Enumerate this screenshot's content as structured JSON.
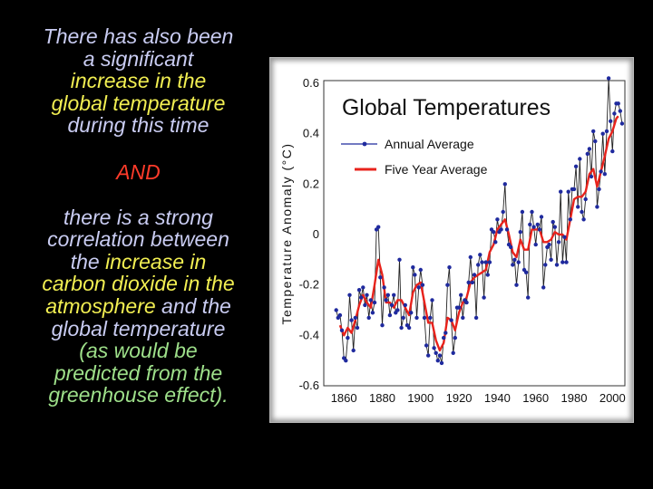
{
  "slide": {
    "intro_lines": [
      {
        "text": "There has also been",
        "cls": "lav"
      },
      {
        "text": "a significant",
        "cls": "lav"
      },
      {
        "text": "increase in the",
        "cls": "yel"
      },
      {
        "text": "global temperature",
        "cls": "yel"
      },
      {
        "text": "during this time",
        "cls": "lav"
      }
    ],
    "and_word": "AND",
    "body_lines": [
      [
        {
          "text": "there is a strong",
          "cls": "lav"
        }
      ],
      [
        {
          "text": "correlation between",
          "cls": "lav"
        }
      ],
      [
        {
          "text": "the ",
          "cls": "lav"
        },
        {
          "text": "increase in",
          "cls": "yel"
        }
      ],
      [
        {
          "text": "carbon dioxide in the",
          "cls": "yel"
        }
      ],
      [
        {
          "text": "atmosphere",
          "cls": "yel"
        },
        {
          "text": " and the",
          "cls": "lav"
        }
      ],
      [
        {
          "text": "global temperature",
          "cls": "lav"
        }
      ],
      [
        {
          "text": "(as would be",
          "cls": "grn"
        }
      ],
      [
        {
          "text": "predicted from the",
          "cls": "grn"
        }
      ],
      [
        {
          "text": "greenhouse effect).",
          "cls": "grn"
        }
      ]
    ]
  },
  "chart_data": {
    "type": "line",
    "title": "Global Temperatures",
    "ylabel": "Temperature Anomaly (°C)",
    "xlabel": "",
    "xlim": [
      1850,
      2006
    ],
    "ylim": [
      -0.6,
      0.6
    ],
    "xticks": [
      "1860",
      "1880",
      "1900",
      "1920",
      "1940",
      "1960",
      "1980",
      "2000"
    ],
    "yticks": [
      "0.6",
      "0.4",
      "0.2",
      "0",
      "-0.2",
      "-0.4",
      "-0.6"
    ],
    "grid": false,
    "legend_position": "top-left",
    "colors": {
      "annual": "#1f2a9e",
      "five_year": "#e8231c"
    },
    "series": [
      {
        "name": "Annual Average",
        "style": "line-with-markers",
        "x": [
          1856,
          1857,
          1858,
          1859,
          1860,
          1861,
          1862,
          1863,
          1864,
          1865,
          1866,
          1867,
          1868,
          1869,
          1870,
          1871,
          1872,
          1873,
          1874,
          1875,
          1876,
          1877,
          1878,
          1879,
          1880,
          1881,
          1882,
          1883,
          1884,
          1885,
          1886,
          1887,
          1888,
          1889,
          1890,
          1891,
          1892,
          1893,
          1894,
          1895,
          1896,
          1897,
          1898,
          1899,
          1900,
          1901,
          1902,
          1903,
          1904,
          1905,
          1906,
          1907,
          1908,
          1909,
          1910,
          1911,
          1912,
          1913,
          1914,
          1915,
          1916,
          1917,
          1918,
          1919,
          1920,
          1921,
          1922,
          1923,
          1924,
          1925,
          1926,
          1927,
          1928,
          1929,
          1930,
          1931,
          1932,
          1933,
          1934,
          1935,
          1936,
          1937,
          1938,
          1939,
          1940,
          1941,
          1942,
          1943,
          1944,
          1945,
          1946,
          1947,
          1948,
          1949,
          1950,
          1951,
          1952,
          1953,
          1954,
          1955,
          1956,
          1957,
          1958,
          1959,
          1960,
          1961,
          1962,
          1963,
          1964,
          1965,
          1966,
          1967,
          1968,
          1969,
          1970,
          1971,
          1972,
          1973,
          1974,
          1975,
          1976,
          1977,
          1978,
          1979,
          1980,
          1981,
          1982,
          1983,
          1984,
          1985,
          1986,
          1987,
          1988,
          1989,
          1990,
          1991,
          1992,
          1993,
          1994,
          1995,
          1996,
          1997,
          1998,
          1999,
          2000,
          2001,
          2002,
          2003,
          2004,
          2005
        ],
        "values": [
          -0.3,
          -0.33,
          -0.32,
          -0.38,
          -0.49,
          -0.5,
          -0.41,
          -0.24,
          -0.34,
          -0.46,
          -0.33,
          -0.37,
          -0.22,
          -0.25,
          -0.21,
          -0.28,
          -0.24,
          -0.33,
          -0.26,
          -0.31,
          -0.27,
          0.02,
          0.03,
          -0.17,
          -0.36,
          -0.21,
          -0.26,
          -0.24,
          -0.32,
          -0.28,
          -0.24,
          -0.31,
          -0.3,
          -0.1,
          -0.37,
          -0.33,
          -0.28,
          -0.36,
          -0.37,
          -0.31,
          -0.13,
          -0.16,
          -0.33,
          -0.21,
          -0.14,
          -0.2,
          -0.33,
          -0.44,
          -0.48,
          -0.33,
          -0.26,
          -0.45,
          -0.47,
          -0.5,
          -0.48,
          -0.51,
          -0.41,
          -0.39,
          -0.2,
          -0.13,
          -0.34,
          -0.47,
          -0.41,
          -0.29,
          -0.29,
          -0.24,
          -0.33,
          -0.26,
          -0.27,
          -0.19,
          -0.09,
          -0.19,
          -0.16,
          -0.33,
          -0.12,
          -0.08,
          -0.11,
          -0.25,
          -0.11,
          -0.16,
          -0.11,
          0.02,
          0.01,
          -0.03,
          0.06,
          0.01,
          0.02,
          0.09,
          0.2,
          0.02,
          -0.04,
          -0.05,
          -0.12,
          -0.1,
          -0.2,
          -0.11,
          0.01,
          0.09,
          -0.14,
          -0.15,
          -0.25,
          0.04,
          0.09,
          0.03,
          -0.04,
          0.04,
          0.02,
          0.07,
          -0.21,
          -0.12,
          -0.05,
          -0.04,
          -0.1,
          0.05,
          0.03,
          -0.12,
          -0.03,
          0.17,
          -0.11,
          -0.01,
          -0.11,
          0.17,
          0.06,
          0.18,
          0.18,
          0.27,
          0.11,
          0.3,
          0.09,
          0.06,
          0.14,
          0.32,
          0.34,
          0.23,
          0.41,
          0.37,
          0.11,
          0.18,
          0.25,
          0.4,
          0.24,
          0.41,
          0.62,
          0.45,
          0.33,
          0.48,
          0.52,
          0.52,
          0.49,
          0.44
        ]
      },
      {
        "name": "Five Year Average",
        "style": "line",
        "x": [
          1858,
          1860,
          1862,
          1864,
          1866,
          1868,
          1870,
          1872,
          1874,
          1876,
          1878,
          1880,
          1882,
          1884,
          1886,
          1888,
          1890,
          1892,
          1894,
          1896,
          1898,
          1900,
          1902,
          1904,
          1906,
          1908,
          1910,
          1912,
          1914,
          1916,
          1918,
          1920,
          1922,
          1924,
          1926,
          1928,
          1930,
          1932,
          1934,
          1936,
          1938,
          1940,
          1942,
          1944,
          1946,
          1948,
          1950,
          1952,
          1954,
          1956,
          1958,
          1960,
          1962,
          1964,
          1966,
          1968,
          1970,
          1972,
          1974,
          1976,
          1978,
          1980,
          1982,
          1984,
          1986,
          1988,
          1990,
          1992,
          1994,
          1996,
          1998,
          2000,
          2002,
          2003
        ],
        "values": [
          -0.36,
          -0.4,
          -0.37,
          -0.39,
          -0.34,
          -0.28,
          -0.24,
          -0.27,
          -0.29,
          -0.2,
          -0.1,
          -0.16,
          -0.27,
          -0.27,
          -0.29,
          -0.26,
          -0.26,
          -0.29,
          -0.32,
          -0.23,
          -0.2,
          -0.19,
          -0.27,
          -0.35,
          -0.35,
          -0.42,
          -0.46,
          -0.43,
          -0.33,
          -0.34,
          -0.38,
          -0.31,
          -0.27,
          -0.25,
          -0.19,
          -0.17,
          -0.16,
          -0.15,
          -0.14,
          -0.07,
          -0.04,
          0.02,
          0.04,
          0.06,
          0.0,
          -0.07,
          -0.09,
          -0.02,
          -0.06,
          -0.06,
          0.02,
          0.02,
          0.02,
          -0.03,
          -0.03,
          -0.02,
          0.01,
          0.0,
          0.0,
          -0.02,
          0.06,
          0.14,
          0.15,
          0.15,
          0.17,
          0.24,
          0.26,
          0.19,
          0.25,
          0.31,
          0.38,
          0.41,
          0.46,
          0.47
        ]
      }
    ]
  }
}
